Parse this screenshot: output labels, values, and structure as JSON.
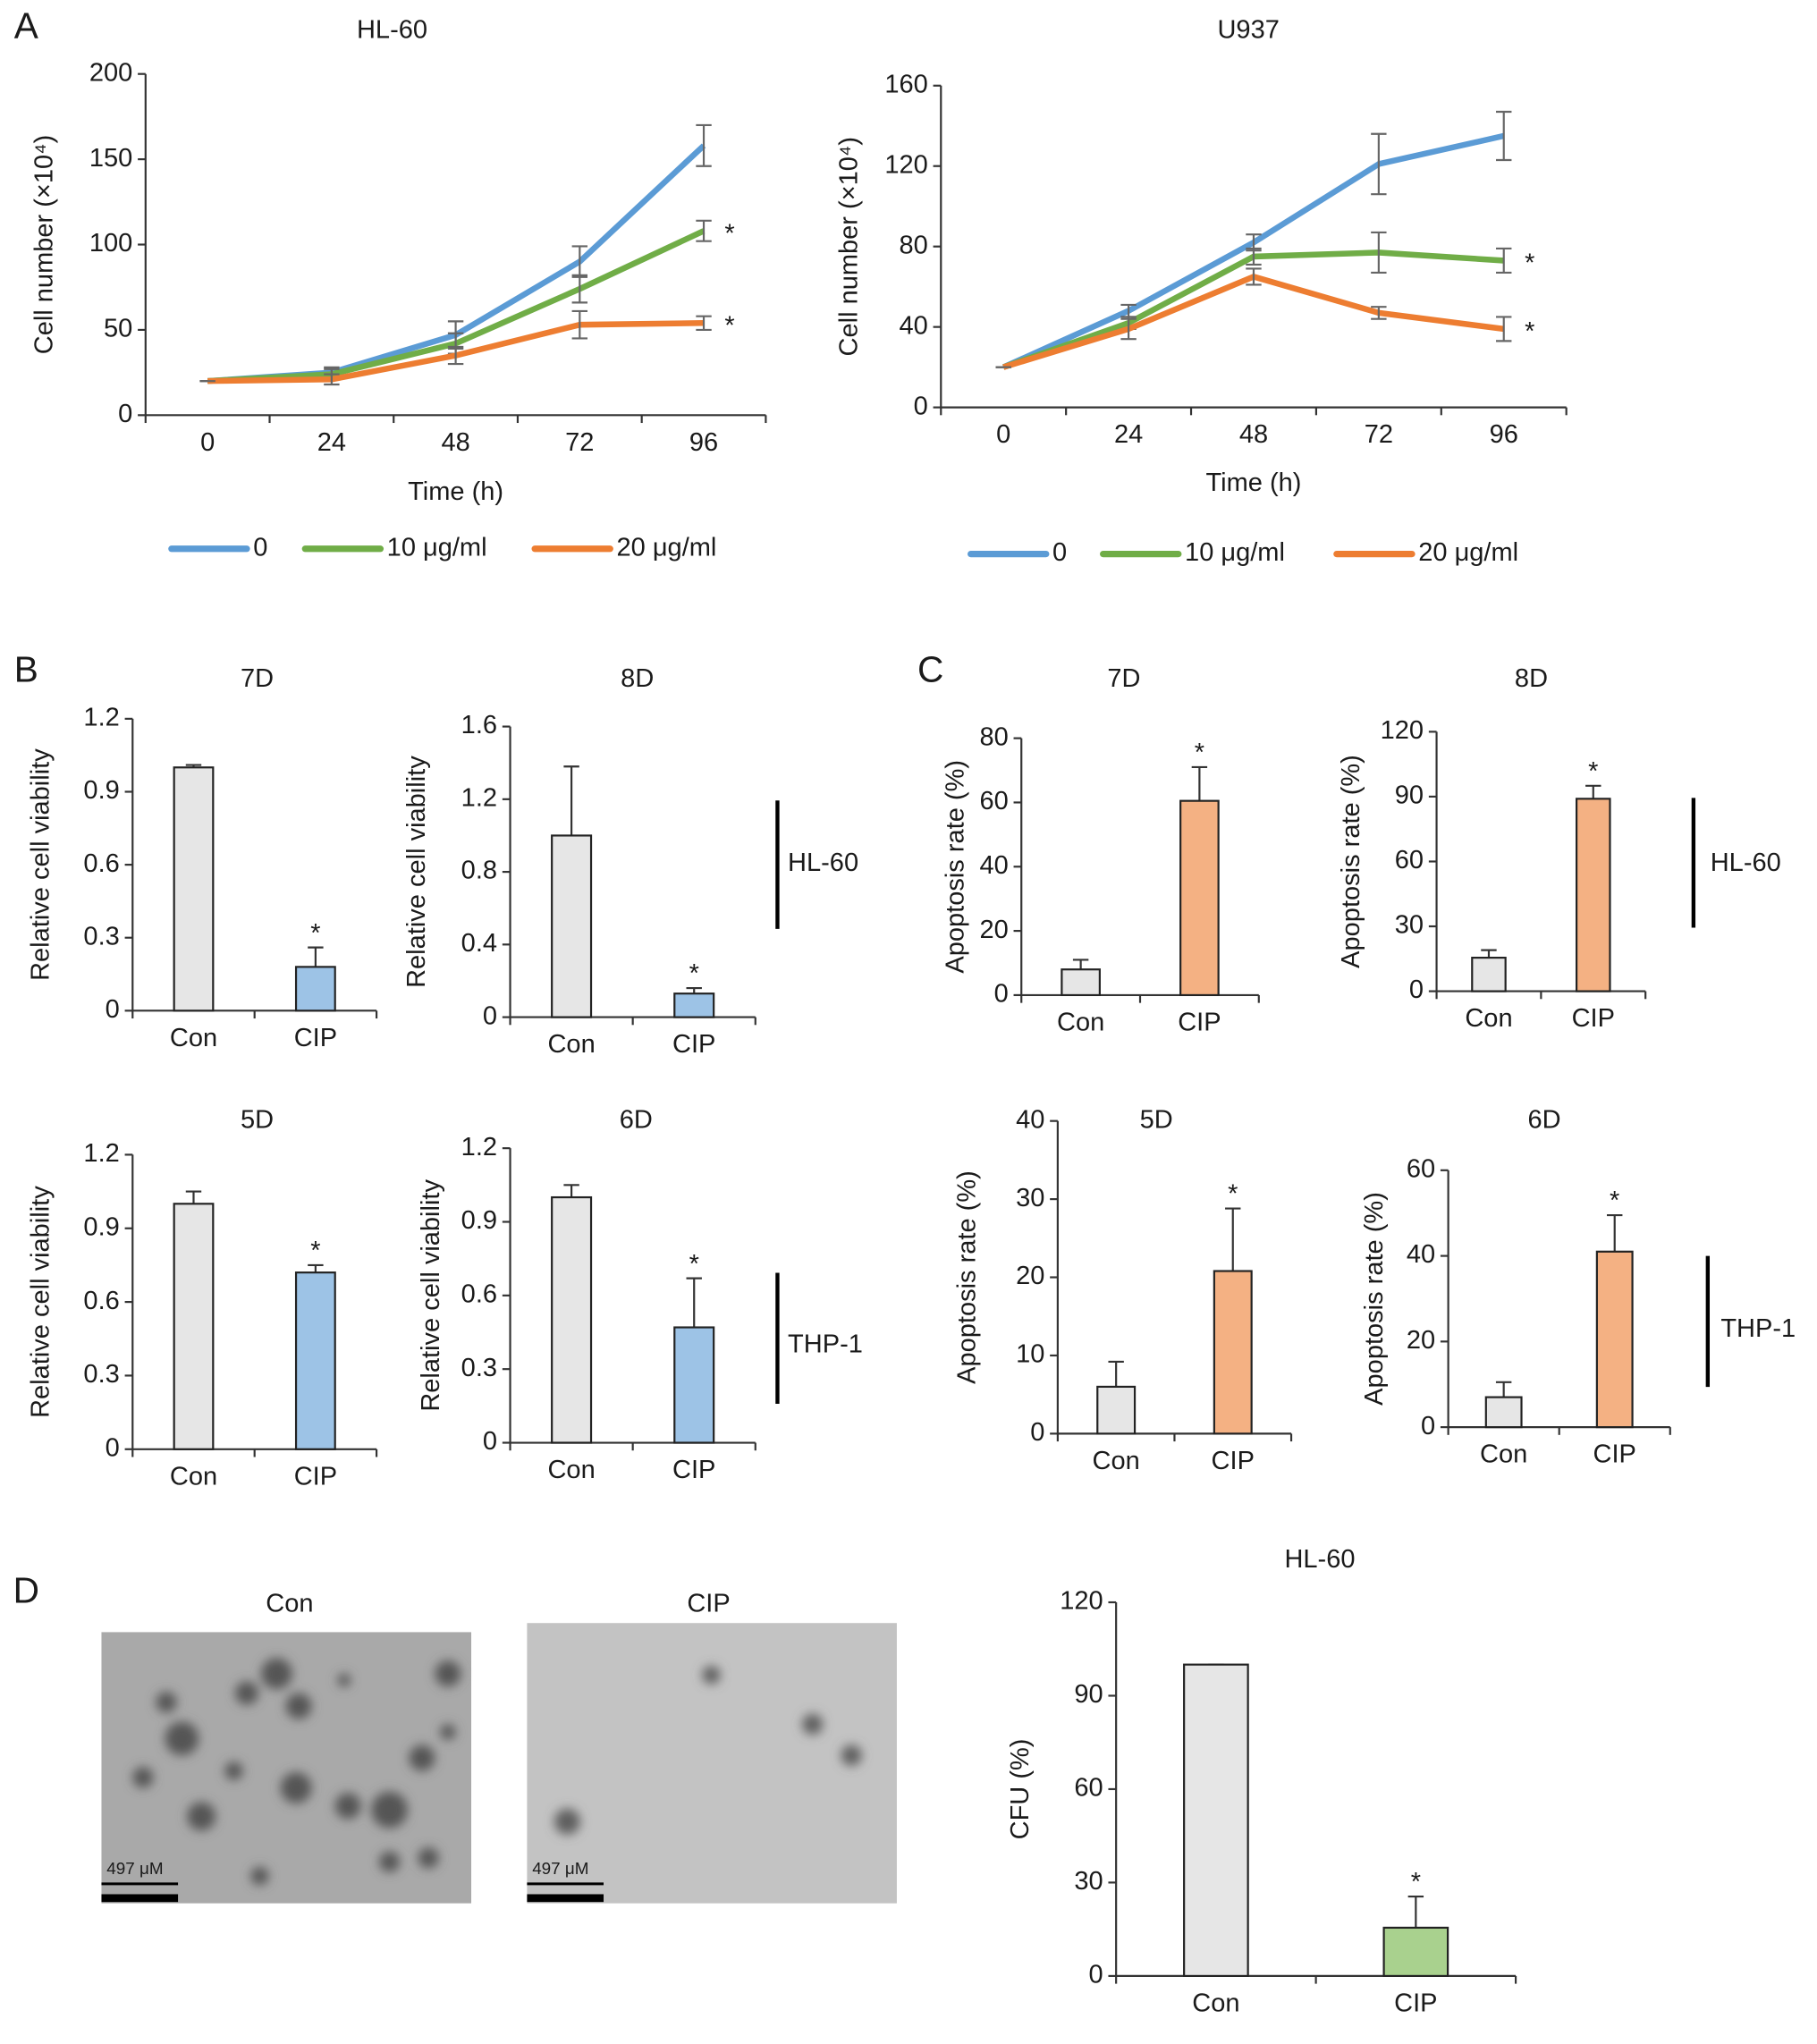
{
  "panels": [
    "A",
    "B",
    "C",
    "D"
  ],
  "group_labels": [
    "HL-60",
    "THP-1",
    "HL-60",
    "THP-1"
  ],
  "images": [
    {
      "title": "Con",
      "scale": "497 μM"
    },
    {
      "title": "CIP",
      "scale": "497 μM"
    }
  ],
  "chart_data": [
    {
      "type": "line",
      "title": "HL-60",
      "x_label": "Time (h)",
      "y_label": "Cell number (×10⁴)",
      "categories": [
        "0",
        "24",
        "48",
        "72",
        "96"
      ],
      "ylim": [
        0,
        200
      ],
      "yticks": [
        0,
        50,
        100,
        150,
        200
      ],
      "series": [
        {
          "name": "0",
          "color": "#5b9bd5",
          "values": [
            20,
            25,
            47,
            90,
            158
          ],
          "errors": [
            0,
            3,
            8,
            9,
            12
          ],
          "significance": [
            null,
            null,
            null,
            null,
            null
          ]
        },
        {
          "name": "10 μg/ml",
          "color": "#70ad47",
          "values": [
            20,
            24,
            42,
            74,
            108
          ],
          "errors": [
            0,
            3,
            6,
            8,
            6
          ],
          "significance": [
            null,
            null,
            null,
            null,
            "*"
          ]
        },
        {
          "name": "20 μg/ml",
          "color": "#ed7d31",
          "values": [
            20,
            21,
            35,
            53,
            54
          ],
          "errors": [
            0,
            3,
            5,
            8,
            4
          ],
          "significance": [
            null,
            null,
            null,
            null,
            "*"
          ]
        }
      ]
    },
    {
      "type": "line",
      "title": "U937",
      "x_label": "Time (h)",
      "y_label": "Cell number (×10⁴)",
      "categories": [
        "0",
        "24",
        "48",
        "72",
        "96"
      ],
      "ylim": [
        0,
        160
      ],
      "yticks": [
        0,
        40,
        80,
        120,
        160
      ],
      "series": [
        {
          "name": "0",
          "color": "#5b9bd5",
          "values": [
            20,
            48,
            82,
            121,
            135
          ],
          "errors": [
            0,
            3,
            4,
            15,
            12
          ],
          "significance": [
            null,
            null,
            null,
            null,
            null
          ]
        },
        {
          "name": "10 μg/ml",
          "color": "#70ad47",
          "values": [
            20,
            42,
            75,
            77,
            73
          ],
          "errors": [
            0,
            3,
            4,
            10,
            6
          ],
          "significance": [
            null,
            null,
            null,
            null,
            "*"
          ]
        },
        {
          "name": "20 μg/ml",
          "color": "#ed7d31",
          "values": [
            20,
            39,
            65,
            47,
            39
          ],
          "errors": [
            0,
            5,
            4,
            3,
            6
          ],
          "significance": [
            null,
            null,
            null,
            null,
            "*"
          ]
        }
      ]
    },
    {
      "type": "bar",
      "title": "7D",
      "y_label": "Relative cell viability",
      "categories": [
        "Con",
        "CIP"
      ],
      "colors": [
        "#e6e6e6",
        "#9dc3e6"
      ],
      "values": [
        1.0,
        0.18
      ],
      "errors": [
        0.01,
        0.08
      ],
      "significance": [
        null,
        "*"
      ],
      "ylim": [
        0,
        1.2
      ],
      "yticks": [
        0,
        0.3,
        0.6,
        0.9,
        1.2
      ]
    },
    {
      "type": "bar",
      "title": "8D",
      "y_label": "Relative cell viability",
      "categories": [
        "Con",
        "CIP"
      ],
      "colors": [
        "#e6e6e6",
        "#9dc3e6"
      ],
      "values": [
        1.0,
        0.13
      ],
      "errors": [
        0.38,
        0.03
      ],
      "significance": [
        null,
        "*"
      ],
      "ylim": [
        0,
        1.6
      ],
      "yticks": [
        0,
        0.4,
        0.8,
        1.2,
        1.6
      ]
    },
    {
      "type": "bar",
      "title": "5D",
      "y_label": "Relative cell viability",
      "categories": [
        "Con",
        "CIP"
      ],
      "colors": [
        "#e6e6e6",
        "#9dc3e6"
      ],
      "values": [
        1.0,
        0.72
      ],
      "errors": [
        0.05,
        0.03
      ],
      "significance": [
        null,
        "*"
      ],
      "ylim": [
        0,
        1.2
      ],
      "yticks": [
        0,
        0.3,
        0.6,
        0.9,
        1.2
      ]
    },
    {
      "type": "bar",
      "title": "6D",
      "y_label": "Relative cell viability",
      "categories": [
        "Con",
        "CIP"
      ],
      "colors": [
        "#e6e6e6",
        "#9dc3e6"
      ],
      "values": [
        1.0,
        0.47
      ],
      "errors": [
        0.05,
        0.2
      ],
      "significance": [
        null,
        "*"
      ],
      "ylim": [
        0,
        1.2
      ],
      "yticks": [
        0,
        0.3,
        0.6,
        0.9,
        1.2
      ]
    },
    {
      "type": "bar",
      "title": "7D",
      "y_label": "Apoptosis rate (%)",
      "categories": [
        "Con",
        "CIP"
      ],
      "colors": [
        "#e6e6e6",
        "#f4b183"
      ],
      "values": [
        8,
        60.5
      ],
      "errors": [
        3,
        10.5
      ],
      "significance": [
        null,
        "*"
      ],
      "ylim": [
        0,
        80
      ],
      "yticks": [
        0,
        20,
        40,
        60,
        80
      ]
    },
    {
      "type": "bar",
      "title": "8D",
      "y_label": "Apoptosis rate (%)",
      "categories": [
        "Con",
        "CIP"
      ],
      "colors": [
        "#e6e6e6",
        "#f4b183"
      ],
      "values": [
        15.5,
        89
      ],
      "errors": [
        3.5,
        6
      ],
      "significance": [
        null,
        "*"
      ],
      "ylim": [
        0,
        120
      ],
      "yticks": [
        0,
        30,
        60,
        90,
        120
      ]
    },
    {
      "type": "bar",
      "title": "5D",
      "y_label": "Apoptosis rate (%)",
      "categories": [
        "Con",
        "CIP"
      ],
      "colors": [
        "#e6e6e6",
        "#f4b183"
      ],
      "values": [
        6,
        20.8
      ],
      "errors": [
        3.2,
        8
      ],
      "significance": [
        null,
        "*"
      ],
      "ylim": [
        0,
        40
      ],
      "yticks": [
        0,
        10,
        20,
        30,
        40
      ]
    },
    {
      "type": "bar",
      "title": "6D",
      "y_label": "Apoptosis rate (%)",
      "categories": [
        "Con",
        "CIP"
      ],
      "colors": [
        "#e6e6e6",
        "#f4b183"
      ],
      "values": [
        7,
        41
      ],
      "errors": [
        3.5,
        8.5
      ],
      "significance": [
        null,
        "*"
      ],
      "ylim": [
        0,
        60
      ],
      "yticks": [
        0,
        20,
        40,
        60
      ]
    },
    {
      "type": "bar",
      "title": "HL-60",
      "y_label": "CFU (%)",
      "categories": [
        "Con",
        "CIP"
      ],
      "colors": [
        "#e6e6e6",
        "#a9d18e"
      ],
      "values": [
        100,
        15.5
      ],
      "errors": [
        0,
        10
      ],
      "significance": [
        null,
        "*"
      ],
      "ylim": [
        0,
        120
      ],
      "yticks": [
        0,
        30,
        60,
        90,
        120
      ]
    }
  ]
}
